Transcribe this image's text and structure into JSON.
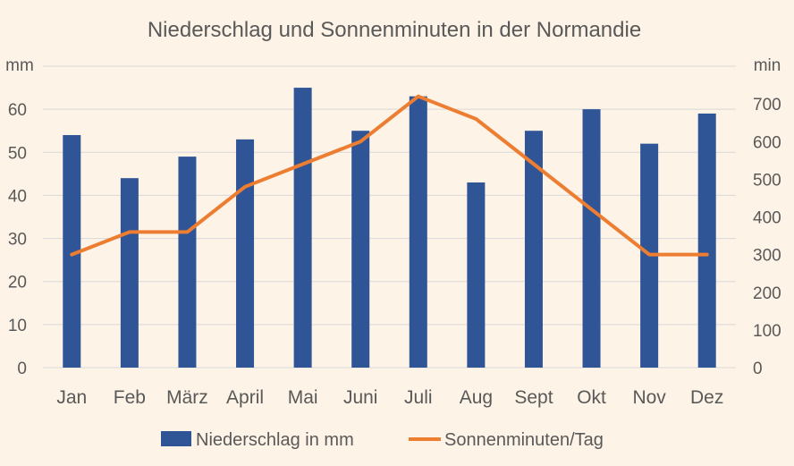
{
  "chart_data": {
    "type": "bar",
    "title": "Niederschlag und Sonnenminuten in der Normandie",
    "categories": [
      "Jan",
      "Feb",
      "März",
      "April",
      "Mai",
      "Juni",
      "Juli",
      "Aug",
      "Sept",
      "Okt",
      "Nov",
      "Dez"
    ],
    "series": [
      {
        "name": "Niederschlag in mm",
        "type": "bar",
        "axis": "left",
        "color": "#2f5597",
        "values": [
          54,
          44,
          49,
          53,
          65,
          55,
          63,
          43,
          55,
          60,
          52,
          59
        ]
      },
      {
        "name": "Sonnenminuten/Tag",
        "type": "line",
        "axis": "right",
        "color": "#ed7d31",
        "values": [
          300,
          360,
          360,
          480,
          540,
          600,
          720,
          660,
          540,
          420,
          300,
          300
        ]
      }
    ],
    "left_axis": {
      "unit": "mm",
      "ylim": [
        0,
        70
      ],
      "ticks": [
        0,
        10,
        20,
        30,
        40,
        50,
        60
      ]
    },
    "right_axis": {
      "unit": "min",
      "ylim": [
        0,
        800
      ],
      "ticks": [
        0,
        100,
        200,
        300,
        400,
        500,
        600,
        700
      ]
    },
    "grid": true,
    "legend_position": "bottom"
  }
}
